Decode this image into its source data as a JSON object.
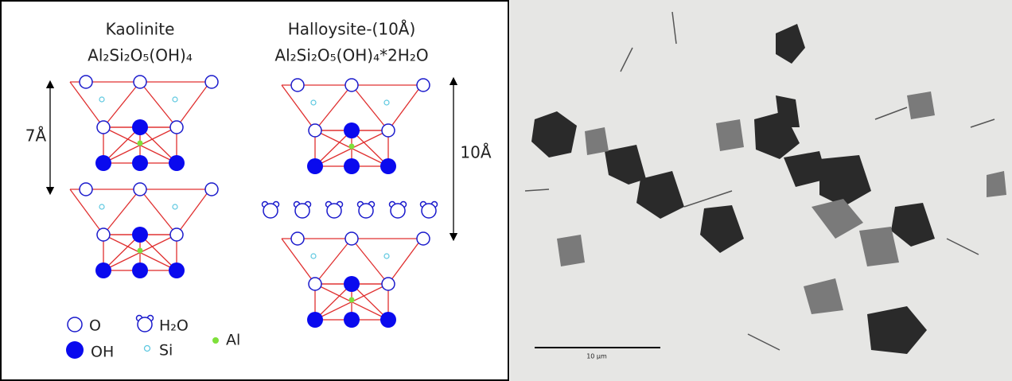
{
  "kaolinite": {
    "name": "Kaolinite",
    "formula": "Al₂Si₂O₅(OH)₄",
    "spacing": "7Å"
  },
  "halloysite": {
    "name": "Halloysite-(10Å)",
    "formula": "Al₂Si₂O₅(OH)₄*2H₂O",
    "spacing": "10Å"
  },
  "legend": [
    {
      "label": "O"
    },
    {
      "label": "OH"
    },
    {
      "label": "H₂O"
    },
    {
      "label": "Si"
    },
    {
      "label": "Al"
    }
  ],
  "micrograph": {
    "scale_bar": "10 µm"
  }
}
